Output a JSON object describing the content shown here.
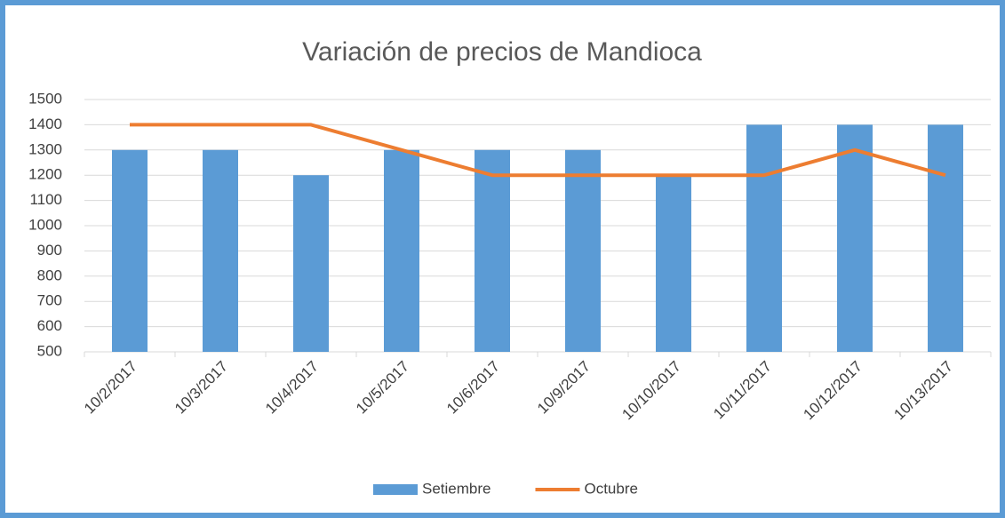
{
  "chart_data": {
    "type": "bar",
    "title": "Variación de precios de Mandioca",
    "categories": [
      "10/2/2017",
      "10/3/2017",
      "10/4/2017",
      "10/5/2017",
      "10/6/2017",
      "10/9/2017",
      "10/10/2017",
      "10/11/2017",
      "10/12/2017",
      "10/13/2017"
    ],
    "series": [
      {
        "name": "Setiembre",
        "type": "bar",
        "color": "#5b9bd5",
        "values": [
          1300,
          1300,
          1200,
          1300,
          1300,
          1300,
          1200,
          1400,
          1400,
          1400
        ]
      },
      {
        "name": "Octubre",
        "type": "line",
        "color": "#ed7d31",
        "values": [
          1400,
          1400,
          1400,
          1300,
          1200,
          1200,
          1200,
          1200,
          1300,
          1200
        ]
      }
    ],
    "ylim": [
      500,
      1500
    ],
    "yticks": [
      500,
      600,
      700,
      800,
      900,
      1000,
      1100,
      1200,
      1300,
      1400,
      1500
    ],
    "grid": true,
    "legend": "bottom"
  }
}
